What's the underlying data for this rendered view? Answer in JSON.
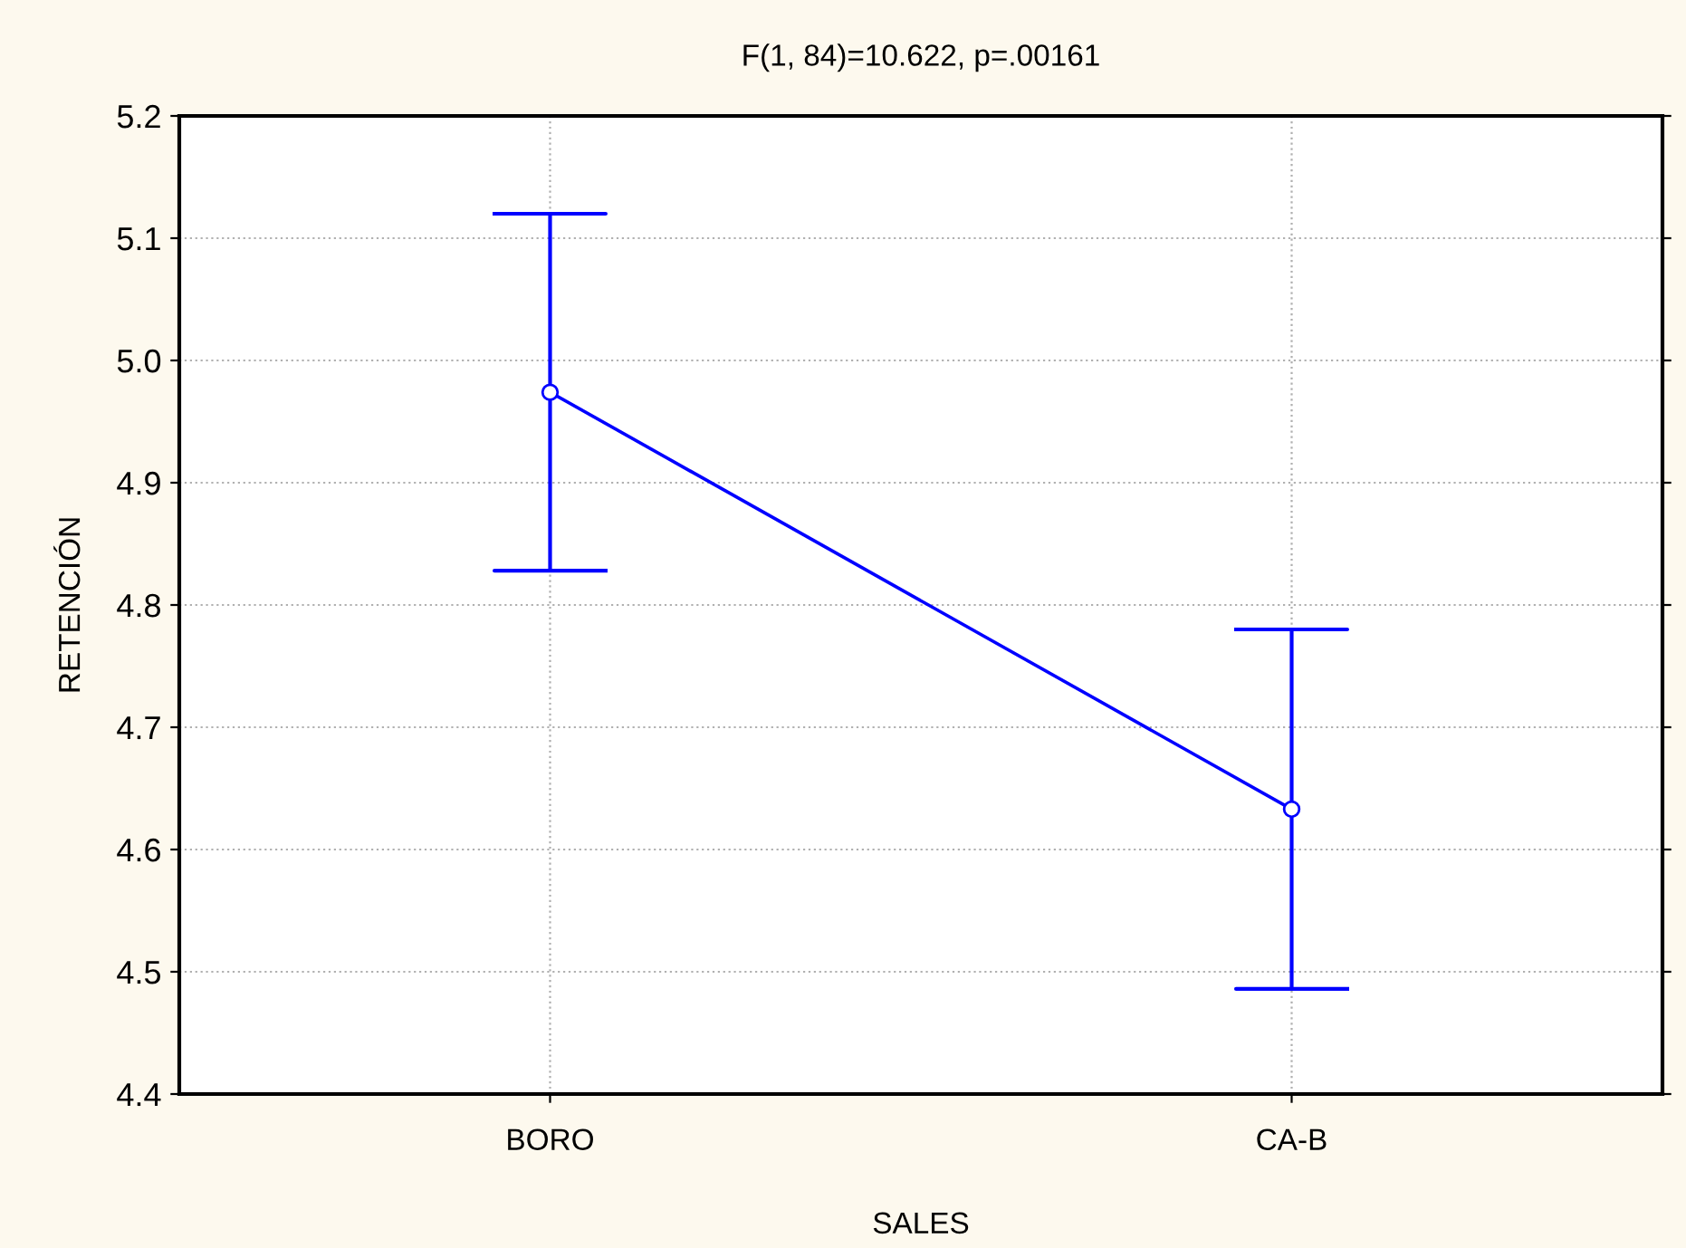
{
  "chart_data": {
    "type": "line",
    "title": "F(1, 84)=10.622, p=.00161",
    "xlabel": "SALES",
    "ylabel": "RETENCIÓN",
    "categories": [
      "BORO",
      "CA-B"
    ],
    "values": [
      4.974,
      4.633
    ],
    "errors": [
      0.146,
      0.147
    ],
    "color": "#0000ff",
    "ylim": [
      4.4,
      5.2
    ],
    "yticks": [
      {
        "value": 4.4,
        "label": "4.4"
      },
      {
        "value": 4.5,
        "label": "4.5"
      },
      {
        "value": 4.6,
        "label": "4.6"
      },
      {
        "value": 4.7,
        "label": "4.7"
      },
      {
        "value": 4.8,
        "label": "4.8"
      },
      {
        "value": 4.9,
        "label": "4.9"
      },
      {
        "value": 5.0,
        "label": "5.0"
      },
      {
        "value": 5.1,
        "label": "5.1"
      },
      {
        "value": 5.2,
        "label": "5.2"
      }
    ],
    "grid": true,
    "marker": "circle",
    "line_style": "solid",
    "legend": false
  }
}
